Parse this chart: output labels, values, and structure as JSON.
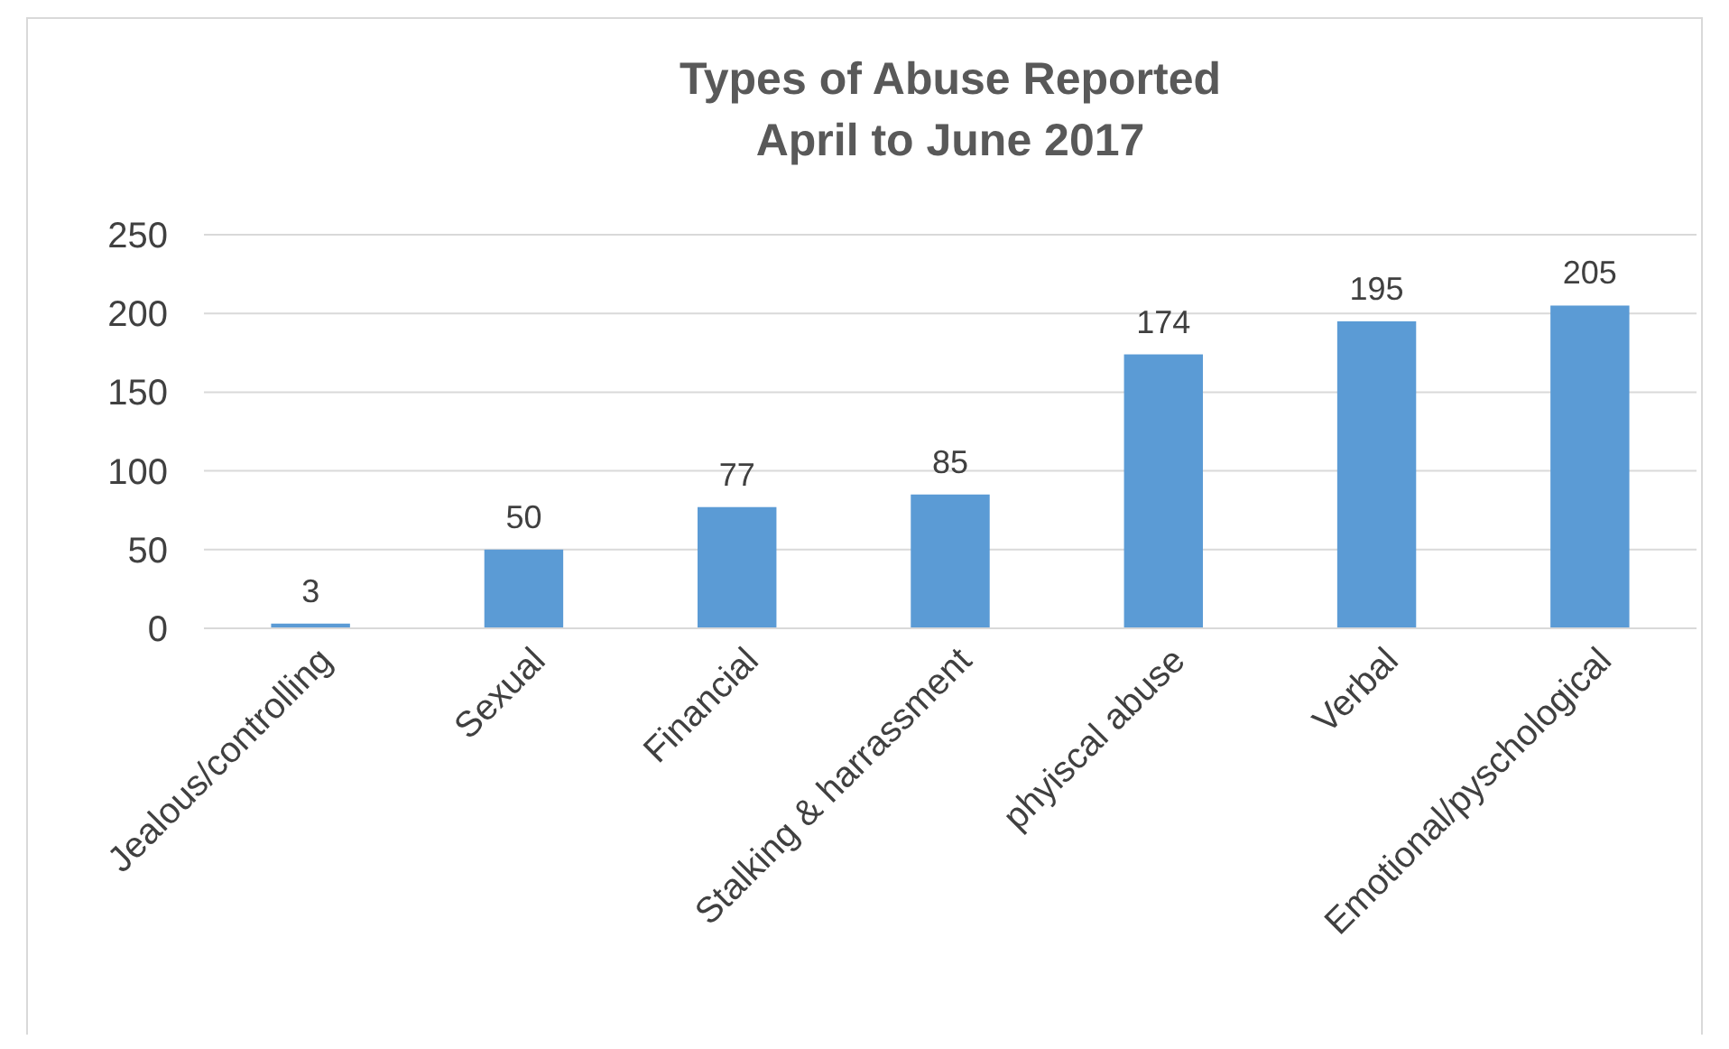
{
  "chart_data": {
    "type": "bar",
    "title": "Types of Abuse Reported\nApril to June 2017",
    "categories": [
      "Jealous/controlling",
      "Sexual",
      "Financial",
      "Stalking & harrassment",
      "phyiscal abuse",
      "Verbal",
      "Emotional/pyschological"
    ],
    "values": [
      3,
      50,
      77,
      85,
      174,
      195,
      205
    ],
    "color": "#5b9bd5",
    "data_labels": true,
    "ylim": [
      0,
      250
    ],
    "yticks": [
      0,
      50,
      100,
      150,
      200,
      250
    ],
    "grid": "y"
  }
}
